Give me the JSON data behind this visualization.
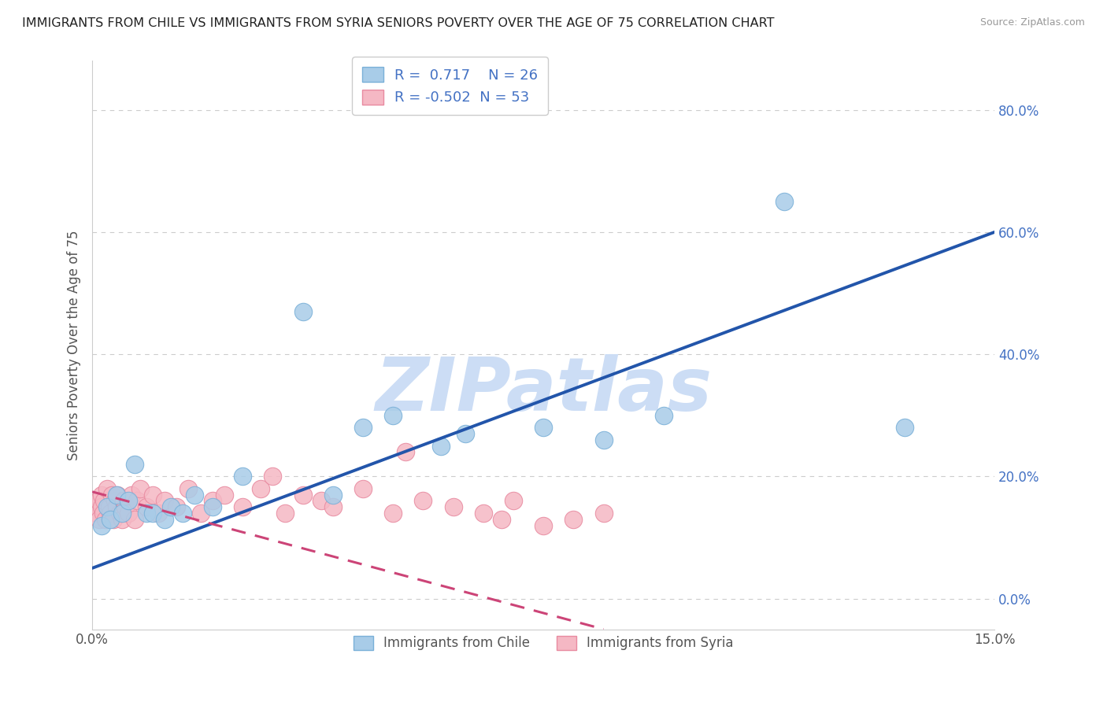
{
  "title": "IMMIGRANTS FROM CHILE VS IMMIGRANTS FROM SYRIA SENIORS POVERTY OVER THE AGE OF 75 CORRELATION CHART",
  "source": "Source: ZipAtlas.com",
  "ylabel": "Seniors Poverty Over the Age of 75",
  "xlabel": "",
  "xlim": [
    0.0,
    15.0
  ],
  "ylim": [
    -5.0,
    88.0
  ],
  "xticks": [
    0.0,
    15.0
  ],
  "yticks": [
    0.0,
    20.0,
    40.0,
    60.0,
    80.0
  ],
  "xtick_labels": [
    "0.0%",
    "15.0%"
  ],
  "ytick_labels": [
    "0.0%",
    "20.0%",
    "40.0%",
    "60.0%",
    "80.0%"
  ],
  "chile_color": "#a8cce8",
  "syria_color": "#f5b8c4",
  "chile_edge": "#7ab0d8",
  "syria_edge": "#e88aa0",
  "trend_chile_color": "#2255aa",
  "trend_syria_color": "#cc4477",
  "R_chile": 0.717,
  "N_chile": 26,
  "R_syria": -0.502,
  "N_syria": 53,
  "legend_label_chile": "Immigrants from Chile",
  "legend_label_syria": "Immigrants from Syria",
  "watermark": "ZIPatlas",
  "watermark_color": "#ccddf5",
  "grid_color": "#cccccc",
  "background_color": "#ffffff",
  "chile_points_x": [
    0.15,
    0.25,
    0.3,
    0.4,
    0.5,
    0.6,
    0.7,
    0.9,
    1.0,
    1.2,
    1.3,
    1.5,
    1.7,
    2.0,
    2.5,
    3.5,
    4.0,
    4.5,
    5.0,
    5.8,
    6.2,
    7.5,
    8.5,
    9.5,
    11.5,
    13.5
  ],
  "chile_points_y": [
    12,
    15,
    13,
    17,
    14,
    16,
    22,
    14,
    14,
    13,
    15,
    14,
    17,
    15,
    20,
    47,
    17,
    28,
    30,
    25,
    27,
    28,
    26,
    30,
    65,
    28
  ],
  "syria_points_x": [
    0.05,
    0.08,
    0.1,
    0.12,
    0.15,
    0.15,
    0.18,
    0.2,
    0.22,
    0.25,
    0.28,
    0.3,
    0.32,
    0.35,
    0.38,
    0.4,
    0.42,
    0.45,
    0.5,
    0.52,
    0.55,
    0.6,
    0.65,
    0.7,
    0.75,
    0.8,
    0.9,
    1.0,
    1.1,
    1.2,
    1.4,
    1.6,
    1.8,
    2.0,
    2.2,
    2.5,
    2.8,
    3.0,
    3.2,
    3.5,
    3.8,
    4.0,
    4.5,
    5.0,
    5.2,
    5.5,
    6.0,
    6.5,
    6.8,
    7.0,
    7.5,
    8.0,
    8.5
  ],
  "syria_points_y": [
    15,
    14,
    16,
    13,
    17,
    15,
    14,
    16,
    13,
    18,
    15,
    14,
    17,
    13,
    16,
    15,
    17,
    14,
    13,
    16,
    15,
    14,
    17,
    13,
    16,
    18,
    15,
    17,
    14,
    16,
    15,
    18,
    14,
    16,
    17,
    15,
    18,
    20,
    14,
    17,
    16,
    15,
    18,
    14,
    24,
    16,
    15,
    14,
    13,
    16,
    12,
    13,
    14
  ],
  "chile_trend_x0": 0.0,
  "chile_trend_y0": 5.0,
  "chile_trend_x1": 15.0,
  "chile_trend_y1": 60.0,
  "syria_trend_x0": 0.0,
  "syria_trend_y0": 17.5,
  "syria_trend_x1": 8.5,
  "syria_trend_y1": -5.0
}
